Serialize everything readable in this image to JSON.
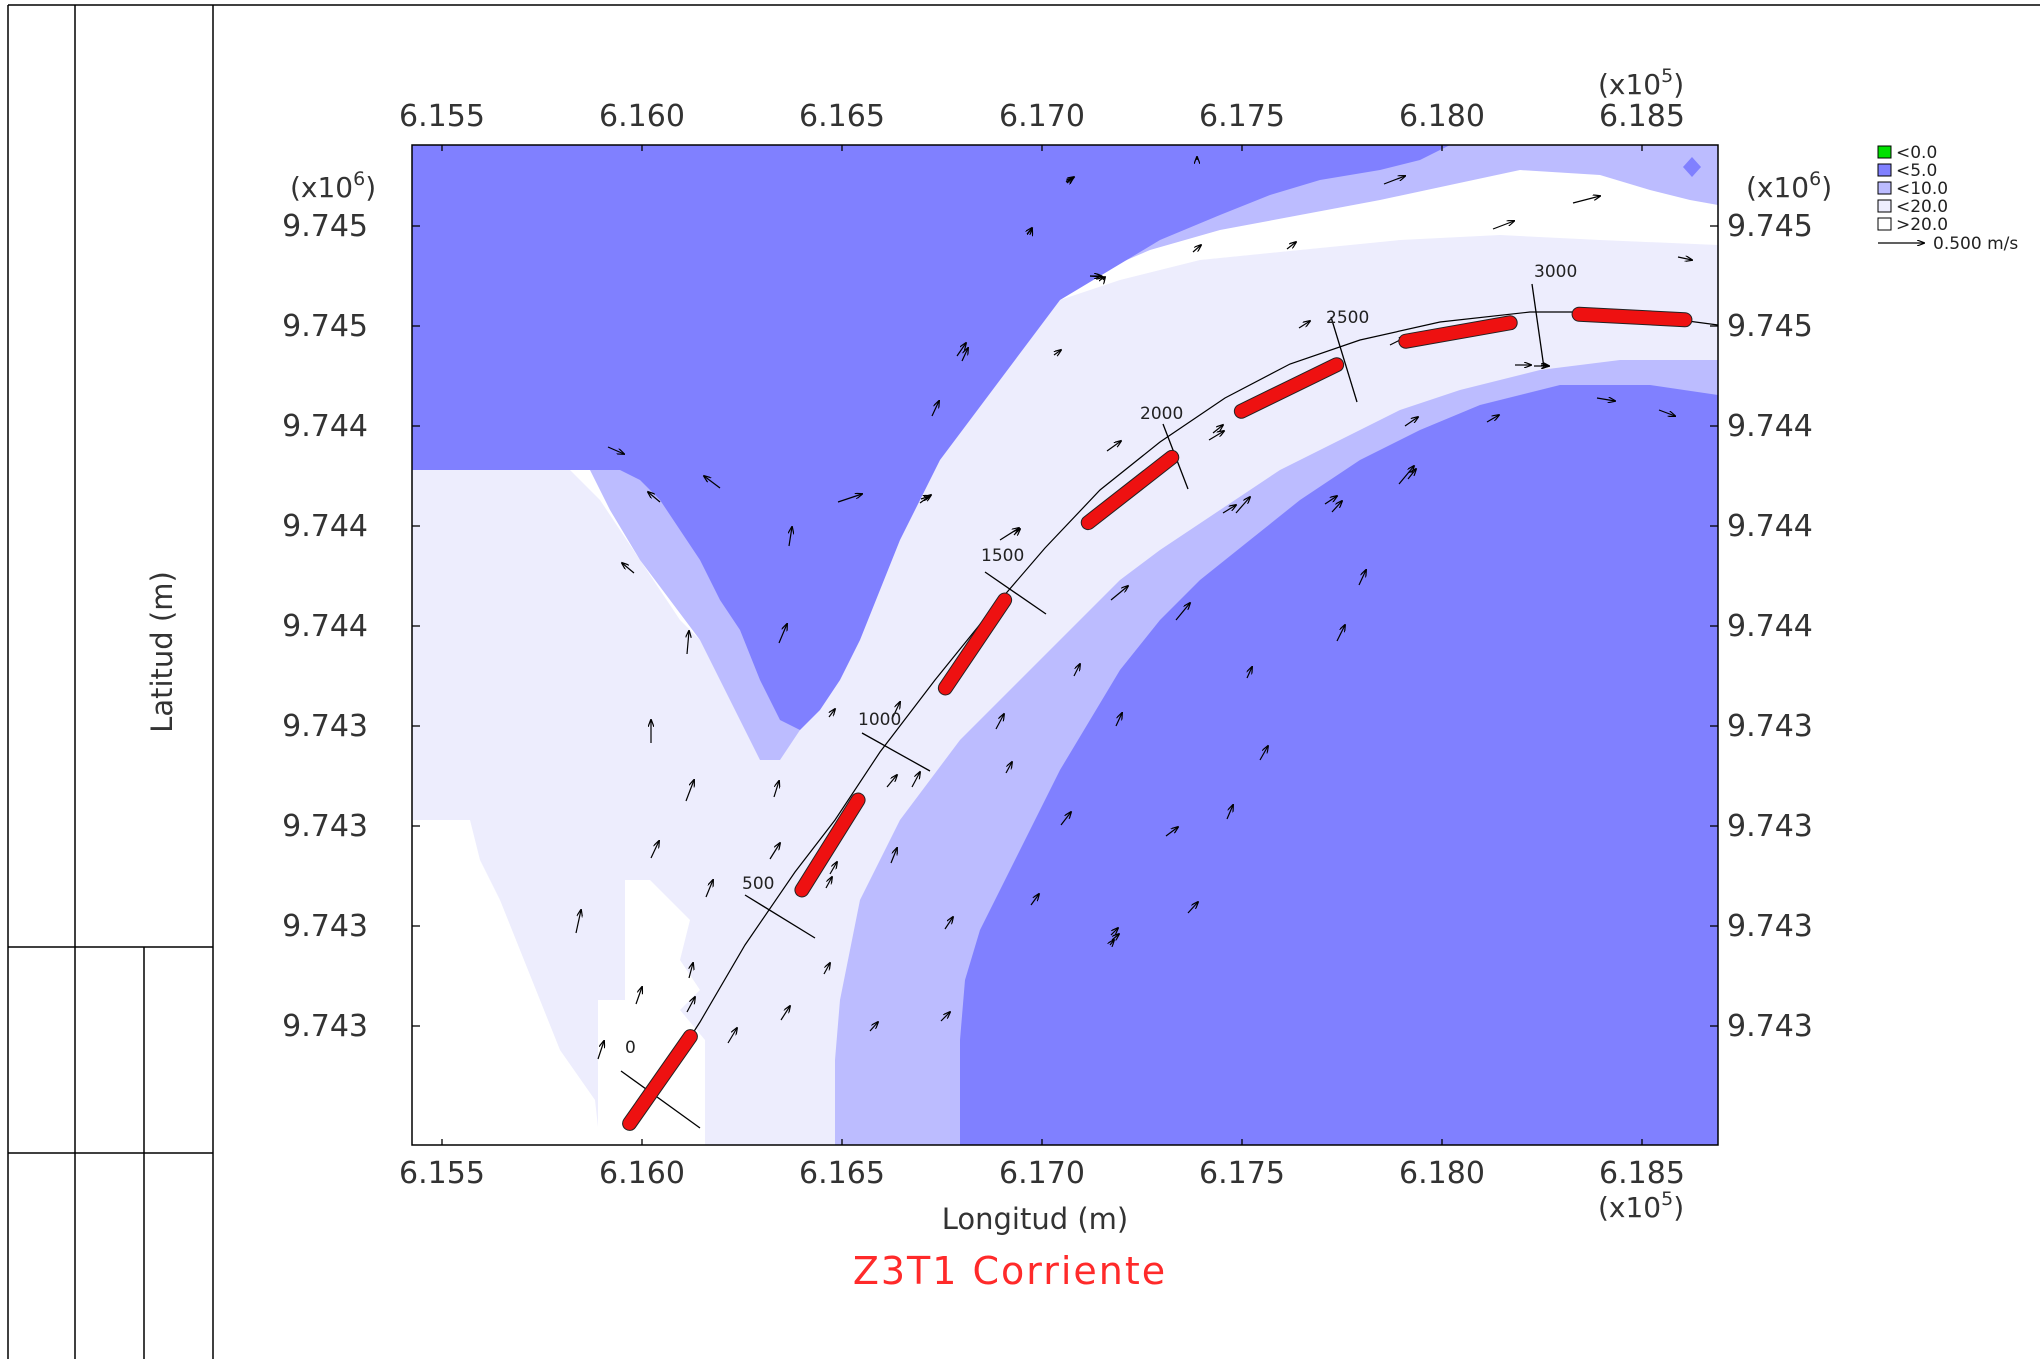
{
  "figure": {
    "title": "Z3T1 Corriente",
    "title_color": "#ff2a2a",
    "xlabel": "Longitud (m)",
    "ylabel": "Latitud (m)",
    "x_multiplier": "(x10",
    "x_multiplier_exp": "5",
    "y_multiplier": "(x10",
    "y_multiplier_exp": "6",
    "multiplier_close": ")",
    "x_ticks": [
      "6.155",
      "6.160",
      "6.165",
      "6.170",
      "6.175",
      "6.180",
      "6.185"
    ],
    "y_ticks": [
      "9.745",
      "9.745",
      "9.744",
      "9.744",
      "9.744",
      "9.743",
      "9.743",
      "9.743",
      "9.743"
    ]
  },
  "legend": {
    "items": [
      {
        "label": "<0.0",
        "color": "#00e000"
      },
      {
        "label": "<5.0",
        "color": "#8080ff"
      },
      {
        "label": "<10.0",
        "color": "#bcbcff"
      },
      {
        "label": "<20.0",
        "color": "#ededfd"
      },
      {
        "label": ">20.0",
        "color": "#ffffff"
      }
    ],
    "vector_scale_label": "0.500 m/s"
  },
  "route": {
    "distance_labels": [
      "0",
      "500",
      "1000",
      "1500",
      "2000",
      "2500",
      "3000"
    ],
    "ship_color": "#ee1111"
  },
  "map_data": {
    "type": "contour-vector-map",
    "x_range_units": "x10^5 m",
    "y_range_units": "x10^6 m",
    "colors": {
      "deep_band": "#8080ff",
      "mid_band": "#bcbcff",
      "light_band": "#ededfd",
      "white_band": "#ffffff"
    }
  }
}
